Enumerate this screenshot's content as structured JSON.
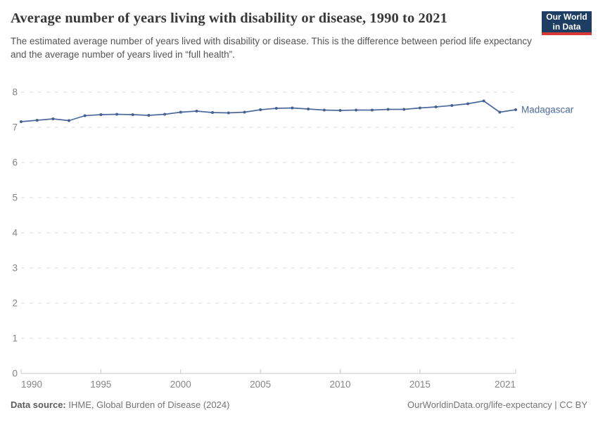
{
  "header": {
    "title": "Average number of years living with disability or disease, 1990 to 2021",
    "subtitle": "The estimated average number of years lived with disability or disease. This is the difference between period life expectancy and the average number of years lived in “full health”.",
    "logo": {
      "line1": "Our World",
      "line2": "in Data"
    }
  },
  "chart_data": {
    "type": "line",
    "title": "Average number of years living with disability or disease, 1990 to 2021",
    "x": [
      1990,
      1991,
      1992,
      1993,
      1994,
      1995,
      1996,
      1997,
      1998,
      1999,
      2000,
      2001,
      2002,
      2003,
      2004,
      2005,
      2006,
      2007,
      2008,
      2009,
      2010,
      2011,
      2012,
      2013,
      2014,
      2015,
      2016,
      2017,
      2018,
      2019,
      2020,
      2021
    ],
    "series": [
      {
        "name": "Madagascar",
        "values": [
          7.16,
          7.2,
          7.24,
          7.19,
          7.33,
          7.36,
          7.37,
          7.36,
          7.34,
          7.37,
          7.43,
          7.46,
          7.42,
          7.41,
          7.43,
          7.5,
          7.54,
          7.55,
          7.52,
          7.49,
          7.48,
          7.49,
          7.49,
          7.51,
          7.51,
          7.55,
          7.58,
          7.62,
          7.67,
          7.75,
          7.43,
          7.5
        ]
      }
    ],
    "xlabel": "",
    "ylabel": "",
    "xlim": [
      1990,
      2021
    ],
    "ylim": [
      0,
      8
    ],
    "x_ticks": [
      1990,
      1995,
      2000,
      2005,
      2010,
      2015,
      2021
    ],
    "y_ticks": [
      0,
      1,
      2,
      3,
      4,
      5,
      6,
      7,
      8
    ],
    "grid": "horizontal-dashed",
    "legend_position": "end-of-line-label"
  },
  "footer": {
    "source_label": "Data source:",
    "source_text": " IHME, Global Burden of Disease (2024)",
    "credit": "OurWorldinData.org/life-expectancy | CC BY"
  },
  "colors": {
    "line": "#4c6a9c",
    "marker": "#44618f",
    "grid": "#dcdcdc",
    "axis": "#c8c8c8",
    "tick_text": "#858585",
    "series_label": "#4c6a9c",
    "logo_bg": "#1d3d63",
    "logo_accent": "#d73a36"
  }
}
